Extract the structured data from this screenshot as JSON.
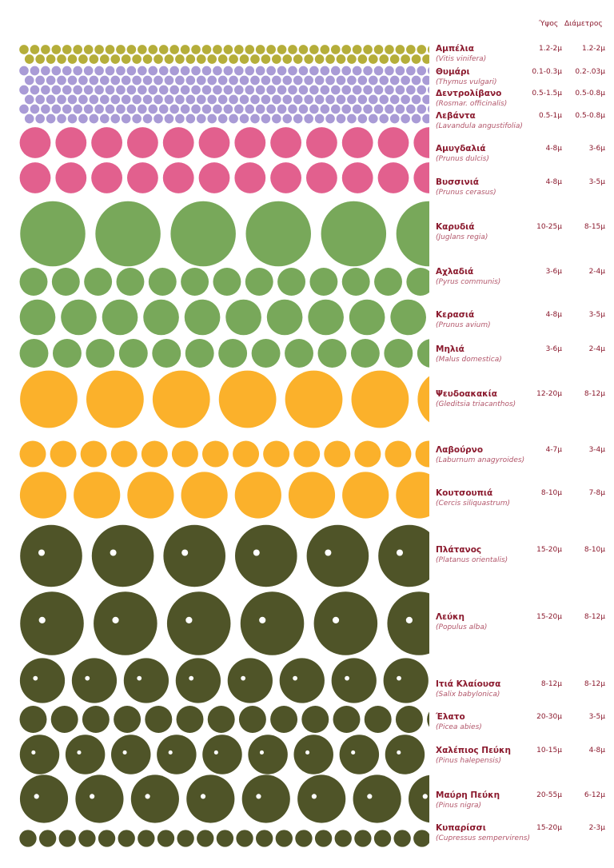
{
  "header": {
    "height": "Ύψος",
    "diameter": "Διάμετρος"
  },
  "rows": [
    {
      "name": "Αμπέλια",
      "latin": "(Vitis vinifera)",
      "height": "1.2-2μ",
      "diameter": "1.2-2μ"
    },
    {
      "name": "Θυμάρι",
      "latin": "(Thymus vulgari)",
      "height": "0.1-0.3μ",
      "diameter": "0.2-.03μ"
    },
    {
      "name": "Δεντρολίβανο",
      "latin": "(Rosmar. officinalis)",
      "height": "0.5-1.5μ",
      "diameter": "0.5-0.8μ"
    },
    {
      "name": "Λεβάντα",
      "latin": "(Lavandula angustifolia)",
      "height": "0.5-1μ",
      "diameter": "0.5-0.8μ"
    },
    {
      "name": "Αμυγδαλιά",
      "latin": "(Prunus dulcis)",
      "height": "4-8μ",
      "diameter": "3-6μ"
    },
    {
      "name": "Βυσσινιά",
      "latin": "(Prunus cerasus)",
      "height": "4-8μ",
      "diameter": "3-5μ"
    },
    {
      "name": "Καρυδιά",
      "latin": "(Juglans regia)",
      "height": "10-25μ",
      "diameter": "8-15μ"
    },
    {
      "name": "Αχλαδιά",
      "latin": "(Pyrus communis)",
      "height": "3-6μ",
      "diameter": "2-4μ"
    },
    {
      "name": "Κερασιά",
      "latin": "(Prunus avium)",
      "height": "4-8μ",
      "diameter": "3-5μ"
    },
    {
      "name": "Μηλιά",
      "latin": "(Malus domestica)",
      "height": "3-6μ",
      "diameter": "2-4μ"
    },
    {
      "name": "Ψευδοακακία",
      "latin": "(Gleditsia triacanthos)",
      "height": "12-20μ",
      "diameter": "8-12μ"
    },
    {
      "name": "Λαβούρνο",
      "latin": "(Laburnum anagyroides)",
      "height": "4-7μ",
      "diameter": "3-4μ"
    },
    {
      "name": "Κουτσουπιά",
      "latin": "(Cercis siliquastrum)",
      "height": "8-10μ",
      "diameter": "7-8μ"
    },
    {
      "name": "Πλάτανος",
      "latin": "(Platanus orientalis)",
      "height": "15-20μ",
      "diameter": "8-10μ"
    },
    {
      "name": "Λεύκη",
      "latin": "(Populus alba)",
      "height": "15-20μ",
      "diameter": "8-12μ"
    },
    {
      "name": "Ιτιά Κλαίουσα",
      "latin": "(Salix babylonica)",
      "height": "8-12μ",
      "diameter": "8-12μ"
    },
    {
      "name": "Έλατο",
      "latin": "(Picea abies)",
      "height": "20-30μ",
      "diameter": "3-5μ"
    },
    {
      "name": "Χαλέπιος Πεύκη",
      "latin": "(Pinus halepensis)",
      "height": "10-15μ",
      "diameter": "4-8μ"
    },
    {
      "name": "Μαύρη Πεύκη",
      "latin": "(Pinus nigra)",
      "height": "20-55μ",
      "diameter": "6-12μ"
    },
    {
      "name": "Κυπαρίσσι",
      "latin": "(Cupressus sempervirens)",
      "height": "15-20μ",
      "diameter": "2-3μ"
    }
  ]
}
